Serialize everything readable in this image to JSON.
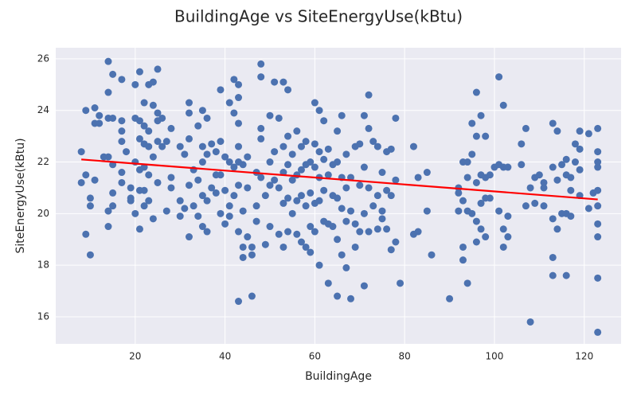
{
  "chart_data": {
    "type": "scatter",
    "title": "BuildingAge vs SiteEnergyUse(kBtu)",
    "xlabel": "BuildingAge",
    "ylabel": "SiteEnergyUse(kBtu)",
    "xlim": [
      2.3,
      128.2
    ],
    "ylim": [
      14.95,
      26.43
    ],
    "xticks": [
      20,
      40,
      60,
      80,
      100,
      120
    ],
    "yticks": [
      16,
      18,
      20,
      22,
      24,
      26
    ],
    "grid": true,
    "color": "#4c72b0",
    "x": [
      8,
      8,
      9,
      9,
      9,
      10,
      10,
      10,
      11,
      11,
      11,
      12,
      12,
      13,
      14,
      14,
      14,
      14,
      14,
      14,
      15,
      15,
      15,
      15,
      15,
      17,
      17,
      17,
      17,
      17,
      17,
      18,
      19,
      19,
      19,
      20,
      20,
      20,
      20,
      21,
      21,
      21,
      21,
      21,
      21,
      22,
      22,
      22,
      22,
      22,
      22,
      23,
      23,
      23,
      23,
      23,
      24,
      24,
      24,
      24,
      25,
      25,
      25,
      25,
      25,
      26,
      26,
      27,
      27,
      28,
      28,
      28,
      30,
      30,
      30,
      31,
      31,
      32,
      32,
      32,
      32,
      32,
      33,
      33,
      34,
      34,
      34,
      35,
      35,
      35,
      35,
      35,
      36,
      36,
      36,
      36,
      37,
      37,
      38,
      38,
      38,
      39,
      39,
      39,
      39,
      40,
      40,
      40,
      41,
      41,
      41,
      41,
      42,
      42,
      42,
      42,
      43,
      43,
      43,
      43,
      43,
      43,
      43,
      43,
      44,
      44,
      44,
      44,
      45,
      45,
      45,
      46,
      46,
      46,
      47,
      47,
      47,
      48,
      48,
      48,
      48,
      48,
      49,
      49,
      50,
      50,
      50,
      50,
      51,
      51,
      51,
      52,
      52,
      52,
      53,
      53,
      53,
      53,
      53,
      54,
      54,
      54,
      54,
      54,
      55,
      55,
      55,
      56,
      56,
      56,
      56,
      57,
      57,
      57,
      57,
      58,
      58,
      58,
      58,
      59,
      59,
      59,
      59,
      60,
      60,
      60,
      60,
      60,
      61,
      61,
      61,
      61,
      61,
      62,
      62,
      62,
      62,
      63,
      63,
      63,
      63,
      64,
      64,
      64,
      65,
      65,
      65,
      65,
      65,
      66,
      66,
      66,
      66,
      67,
      67,
      67,
      67,
      68,
      68,
      68,
      69,
      69,
      69,
      70,
      70,
      70,
      71,
      71,
      71,
      71,
      72,
      72,
      72,
      72,
      73,
      73,
      74,
      74,
      74,
      75,
      75,
      75,
      76,
      76,
      76,
      77,
      77,
      77,
      78,
      78,
      78,
      79,
      82,
      82,
      83,
      83,
      85,
      85,
      86,
      90,
      92,
      92,
      92,
      93,
      93,
      93,
      93,
      94,
      94,
      94,
      94,
      95,
      95,
      95,
      96,
      96,
      96,
      96,
      96,
      97,
      97,
      97,
      97,
      98,
      98,
      98,
      98,
      99,
      99,
      100,
      101,
      101,
      101,
      102,
      102,
      102,
      102,
      103,
      103,
      103,
      106,
      106,
      107,
      107,
      108,
      108,
      109,
      109,
      110,
      111,
      111,
      111,
      113,
      113,
      113,
      113,
      113,
      114,
      114,
      114,
      115,
      115,
      116,
      116,
      116,
      116,
      117,
      117,
      117,
      118,
      118,
      119,
      119,
      119,
      119,
      121,
      121,
      122,
      123,
      123,
      123,
      123,
      123,
      123,
      123,
      123,
      123,
      123
    ],
    "values": [
      22.4,
      21.2,
      24.0,
      21.5,
      19.2,
      20.6,
      20.3,
      18.4,
      24.1,
      23.5,
      21.3,
      23.5,
      23.8,
      22.2,
      25.9,
      24.7,
      23.7,
      22.2,
      20.1,
      19.5,
      25.4,
      23.7,
      21.9,
      20.8,
      20.3,
      25.2,
      23.6,
      23.2,
      22.8,
      21.6,
      21.2,
      22.4,
      21.0,
      20.6,
      20.5,
      25.0,
      23.7,
      22.0,
      20.0,
      25.5,
      23.6,
      22.9,
      21.7,
      20.9,
      19.4,
      24.3,
      23.4,
      22.7,
      21.8,
      20.9,
      20.3,
      25.0,
      23.2,
      22.6,
      21.5,
      20.5,
      25.1,
      24.2,
      22.2,
      19.8,
      25.6,
      23.9,
      23.6,
      22.8,
      21.2,
      23.7,
      22.6,
      22.8,
      20.1,
      23.3,
      21.4,
      21.0,
      22.6,
      20.5,
      19.9,
      22.3,
      20.2,
      24.3,
      23.9,
      22.9,
      21.1,
      19.1,
      21.7,
      20.3,
      23.4,
      21.3,
      19.9,
      24.0,
      22.6,
      22.0,
      20.7,
      19.5,
      23.7,
      22.3,
      20.5,
      19.3,
      22.7,
      21.0,
      22.4,
      21.5,
      20.8,
      24.8,
      22.8,
      21.5,
      20.0,
      22.2,
      20.9,
      19.6,
      24.3,
      22.0,
      20.3,
      19.9,
      25.2,
      23.9,
      21.8,
      20.7,
      25.0,
      24.5,
      23.5,
      22.6,
      22.0,
      21.1,
      19.3,
      16.6,
      21.9,
      20.1,
      18.7,
      18.3,
      22.2,
      21.0,
      19.1,
      18.7,
      18.4,
      16.8,
      21.6,
      20.3,
      19.7,
      25.8,
      25.3,
      23.3,
      22.9,
      21.4,
      20.7,
      18.8,
      23.8,
      22.0,
      21.1,
      19.5,
      25.1,
      22.4,
      21.3,
      23.7,
      21.0,
      19.2,
      25.1,
      22.6,
      21.6,
      20.4,
      18.7,
      24.8,
      23.0,
      21.9,
      20.6,
      19.3,
      22.3,
      21.3,
      20.0,
      23.2,
      21.5,
      20.5,
      19.2,
      22.6,
      21.7,
      20.7,
      18.9,
      22.8,
      21.9,
      20.3,
      18.7,
      22.0,
      20.8,
      19.5,
      18.5,
      24.3,
      22.7,
      21.8,
      20.4,
      19.3,
      24.0,
      22.4,
      21.4,
      20.5,
      18.0,
      23.6,
      22.1,
      20.9,
      19.7,
      22.5,
      21.5,
      19.6,
      17.3,
      21.9,
      20.7,
      19.5,
      23.2,
      22.0,
      20.6,
      19.0,
      16.8,
      23.8,
      21.4,
      20.2,
      18.4,
      22.3,
      21.0,
      19.7,
      17.9,
      21.4,
      20.1,
      16.7,
      22.6,
      19.6,
      18.7,
      22.7,
      21.1,
      19.3,
      23.8,
      21.8,
      20.0,
      17.2,
      24.6,
      23.3,
      21.0,
      19.3,
      22.8,
      20.3,
      22.6,
      20.7,
      19.4,
      21.6,
      20.1,
      19.8,
      22.4,
      20.9,
      19.4,
      22.5,
      20.7,
      18.6,
      23.7,
      21.3,
      18.9,
      17.3,
      22.6,
      19.2,
      19.3,
      21.4,
      21.6,
      20.1,
      18.4,
      16.7,
      21.0,
      20.8,
      20.1,
      22.0,
      20.5,
      18.7,
      18.2,
      22.0,
      21.4,
      20.1,
      17.3,
      23.5,
      22.3,
      20.0,
      24.7,
      23.0,
      21.2,
      19.7,
      18.9,
      23.8,
      21.5,
      20.4,
      19.4,
      23.0,
      21.4,
      20.6,
      19.1,
      21.5,
      20.6,
      21.8,
      25.3,
      21.9,
      20.1,
      24.2,
      21.8,
      19.4,
      18.7,
      21.8,
      19.9,
      19.1,
      22.7,
      21.9,
      23.3,
      20.3,
      21.0,
      15.8,
      21.4,
      20.4,
      21.5,
      21.2,
      21.0,
      20.3,
      23.5,
      21.8,
      19.8,
      18.3,
      17.6,
      23.2,
      21.3,
      19.4,
      21.9,
      20.0,
      22.1,
      21.5,
      20.0,
      17.6,
      21.4,
      20.9,
      19.9,
      22.7,
      22.0,
      23.2,
      22.5,
      21.7,
      20.7,
      23.1,
      20.2,
      20.8,
      23.3,
      22.4,
      22.0,
      21.8,
      20.9,
      20.3,
      19.6,
      19.1,
      17.5,
      15.4
    ],
    "trendline": {
      "color": "#ff0000",
      "x": [
        8,
        123
      ],
      "values": [
        22.1,
        20.55
      ]
    }
  }
}
